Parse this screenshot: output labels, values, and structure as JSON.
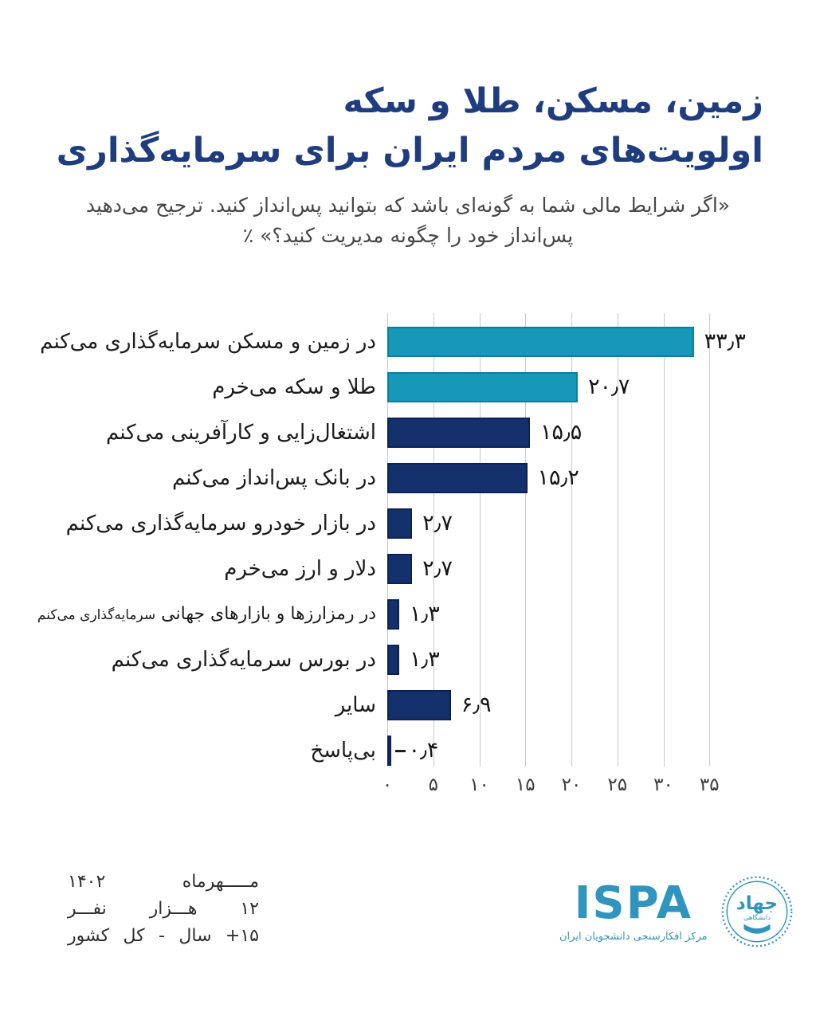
{
  "colors": {
    "background": "#FFFFFF",
    "title": "#1F3D7E",
    "subtitle": "#474747",
    "teal": "#1699B9",
    "teal_border": "#0C7E9A",
    "navy": "#14316E",
    "navy_border": "#0B2152",
    "grid": "#C9C9C9",
    "text": "#1B1B1B",
    "brand": "#2F94BE"
  },
  "header": {
    "title_line1": "زمین، مسکن، طلا و سکه",
    "title_line2": "اولویت‌های مردم ایران برای سرمایه‌گذاری",
    "question": "«اگر شرایط مالی شما به گونه‌ای باشد که بتوانید پس‌انداز کنید. ترجیح می‌دهید پس‌انداز خود را چگونه مدیریت کنید؟» ٪"
  },
  "chart_data": {
    "type": "bar",
    "orientation": "horizontal",
    "unit": "percent",
    "grid": "vertical-only",
    "xlim": [
      0,
      35
    ],
    "xticks": [
      0,
      5,
      10,
      15,
      20,
      25,
      30,
      35
    ],
    "xtick_labels": [
      "۰",
      "۵",
      "۱۰",
      "۱۵",
      "۲۰",
      "۲۵",
      "۳۰",
      "۳۵"
    ],
    "categories": [
      {
        "text": "در زمین و مسکن سرمایه‌گذاری می‌کنم",
        "small": ""
      },
      {
        "text": "طلا و سکه می‌خرم",
        "small": ""
      },
      {
        "text": "اشتغال‌زایی و کارآفرینی می‌کنم",
        "small": ""
      },
      {
        "text": "در بانک پس‌انداز می‌کنم",
        "small": ""
      },
      {
        "text": "در بازار خودرو سرمایه‌گذاری می‌کنم",
        "small": ""
      },
      {
        "text": "دلار و ارز می‌خرم",
        "small": ""
      },
      {
        "text": "در رمزارزها و بازارهای جهانی",
        "small": "سرمایه‌گذاری می‌کنم"
      },
      {
        "text": "در بورس سرمایه‌گذاری می‌کنم",
        "small": ""
      },
      {
        "text": "سایر",
        "small": ""
      },
      {
        "text": "بی‌پاسخ",
        "small": ""
      }
    ],
    "values": [
      33.3,
      20.7,
      15.5,
      15.2,
      2.7,
      2.7,
      1.3,
      1.3,
      6.9,
      0.4
    ],
    "value_labels": [
      "۳۳٫۳",
      "۲۰٫۷",
      "۱۵٫۵",
      "۱۵٫۲",
      "۲٫۷",
      "۲٫۷",
      "۱٫۳",
      "۱٫۳",
      "۶٫۹",
      "۰٫۴"
    ],
    "bar_color_keys": [
      "teal",
      "teal",
      "navy",
      "navy",
      "navy",
      "navy",
      "navy",
      "navy",
      "navy",
      "navy"
    ],
    "callout": [
      false,
      false,
      false,
      false,
      false,
      false,
      false,
      false,
      false,
      true
    ]
  },
  "footer": {
    "meta_lines": [
      "مـــــهرماه ۱۴۰۲",
      "۱۲ هـــزار نفـــر",
      "۱۵+ سال - کل کشور"
    ],
    "brand": {
      "name": "ISPA",
      "subtitle": "مرکز افکارسنجی دانشجویان ایران",
      "emblem_line1": "جهاد",
      "emblem_line2": "دانشگاهی"
    }
  }
}
